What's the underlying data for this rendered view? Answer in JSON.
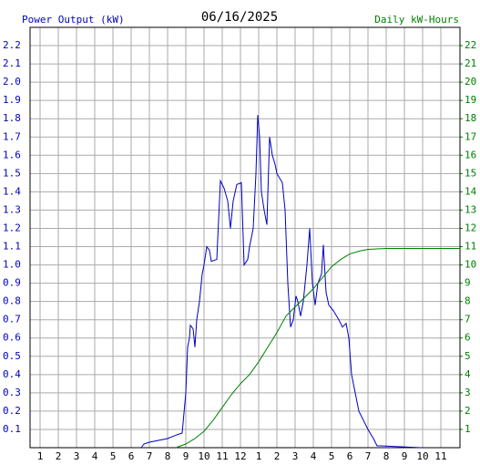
{
  "chart_data": {
    "type": "line",
    "title": "06/16/2025",
    "xlim": [
      0.45,
      24.05
    ],
    "xticks": [
      1,
      2,
      3,
      4,
      5,
      6,
      7,
      8,
      9,
      10,
      11,
      12,
      {
        "value": 13,
        "label": "1"
      },
      {
        "value": 14,
        "label": "2"
      },
      {
        "value": 15,
        "label": "3"
      },
      {
        "value": 16,
        "label": "4"
      },
      {
        "value": 17,
        "label": "5"
      },
      {
        "value": 18,
        "label": "6"
      },
      {
        "value": 19,
        "label": "7"
      },
      {
        "value": 20,
        "label": "8"
      },
      {
        "value": 21,
        "label": "9"
      },
      {
        "value": 22,
        "label": "10"
      },
      {
        "value": 23,
        "label": "11"
      }
    ],
    "ylim": [
      0,
      2.3
    ],
    "yticks": [
      0.1,
      0.2,
      0.3,
      0.4,
      0.5,
      0.6,
      0.7,
      0.8,
      0.9,
      {
        "value": 1,
        "label": "1.0"
      },
      1.1,
      1.2,
      1.3,
      1.4,
      1.5,
      1.6,
      1.7,
      1.8,
      1.9,
      {
        "value": 2,
        "label": "2.0"
      },
      2.1,
      2.2
    ],
    "y2lim": [
      0,
      23
    ],
    "y2ticks": [
      1,
      2,
      3,
      4,
      5,
      6,
      7,
      8,
      9,
      10,
      11,
      12,
      13,
      14,
      15,
      16,
      17,
      18,
      19,
      20,
      21,
      22
    ],
    "grid": true,
    "series": [
      {
        "name": "Power Output (kW)",
        "color": "#0000c0",
        "axis": "y",
        "x": [
          6.55,
          6.7,
          7.0,
          7.5,
          8.0,
          8.5,
          8.8,
          9.0,
          9.1,
          9.2,
          9.25,
          9.4,
          9.5,
          9.6,
          9.75,
          9.9,
          10.0,
          10.15,
          10.3,
          10.4,
          10.7,
          10.9,
          11.1,
          11.3,
          11.45,
          11.6,
          11.8,
          12.05,
          12.2,
          12.4,
          12.5,
          12.7,
          12.85,
          12.95,
          13.05,
          13.15,
          13.3,
          13.45,
          13.6,
          13.75,
          13.9,
          14.0,
          14.3,
          14.45,
          14.6,
          14.75,
          14.9,
          15.05,
          15.15,
          15.3,
          15.45,
          15.65,
          15.8,
          15.95,
          16.1,
          16.25,
          16.45,
          16.55,
          16.7,
          16.85,
          17.1,
          17.4,
          17.6,
          17.8,
          17.95,
          18.1,
          18.3,
          18.5,
          18.75,
          19.0,
          19.3,
          19.5,
          19.7,
          21.9
        ],
        "values": [
          0,
          0.02,
          0.03,
          0.04,
          0.05,
          0.07,
          0.08,
          0.3,
          0.55,
          0.6,
          0.67,
          0.65,
          0.55,
          0.7,
          0.8,
          0.95,
          1.0,
          1.1,
          1.08,
          1.02,
          1.03,
          1.46,
          1.42,
          1.35,
          1.2,
          1.35,
          1.44,
          1.45,
          1.0,
          1.03,
          1.1,
          1.2,
          1.5,
          1.82,
          1.7,
          1.4,
          1.3,
          1.22,
          1.7,
          1.6,
          1.55,
          1.5,
          1.45,
          1.3,
          0.9,
          0.66,
          0.7,
          0.83,
          0.8,
          0.72,
          0.8,
          1.0,
          1.2,
          0.9,
          0.78,
          0.9,
          0.95,
          1.11,
          0.85,
          0.78,
          0.75,
          0.7,
          0.66,
          0.68,
          0.6,
          0.4,
          0.3,
          0.2,
          0.15,
          0.1,
          0.05,
          0.01,
          0.01,
          0
        ]
      },
      {
        "name": "Daily kW-Hours",
        "color": "#008000",
        "axis": "y2",
        "x": [
          8.45,
          9.0,
          9.5,
          10.0,
          10.5,
          11.0,
          11.5,
          12.0,
          12.5,
          13.0,
          13.5,
          14.0,
          14.5,
          15.0,
          15.5,
          16.0,
          16.5,
          17.0,
          17.5,
          18.0,
          18.5,
          19.0,
          20.0,
          24.05
        ],
        "values": [
          0,
          0.2,
          0.5,
          0.9,
          1.5,
          2.2,
          2.9,
          3.5,
          4.0,
          4.7,
          5.5,
          6.3,
          7.2,
          7.7,
          8.2,
          8.7,
          9.3,
          9.9,
          10.3,
          10.6,
          10.75,
          10.85,
          10.9,
          10.9
        ]
      }
    ]
  }
}
